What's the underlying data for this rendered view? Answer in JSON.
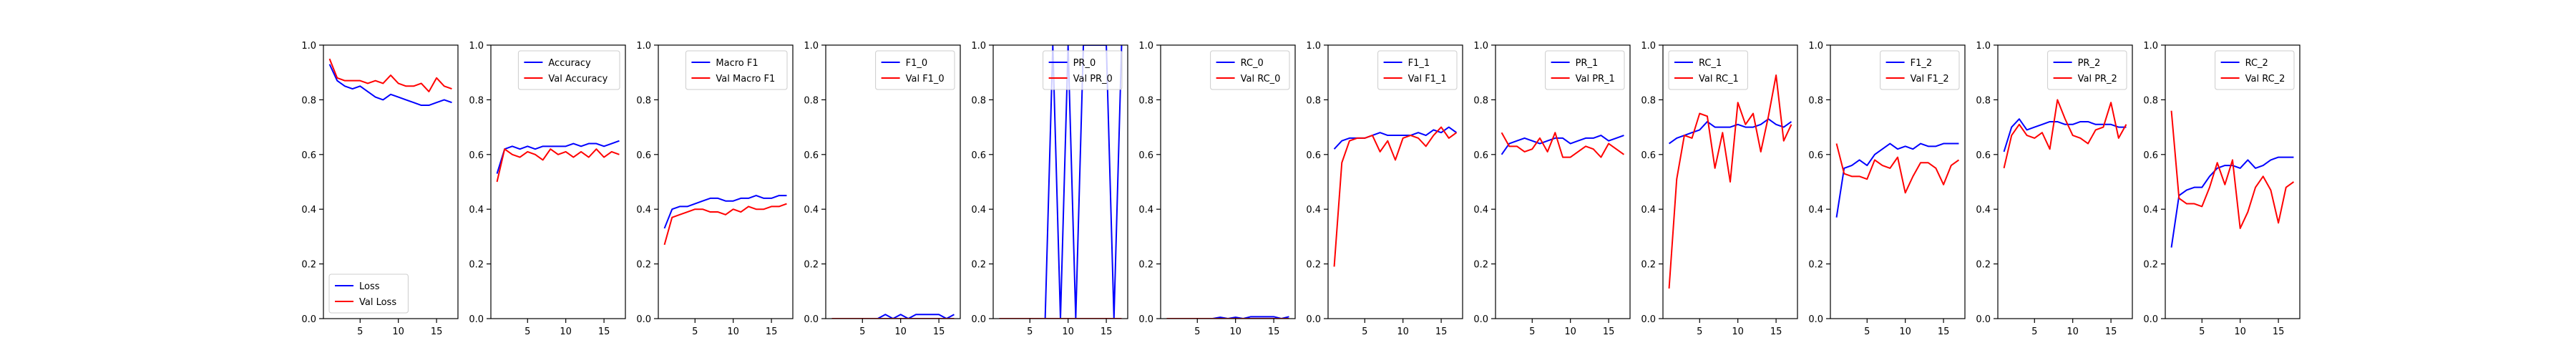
{
  "chart_data": [
    {
      "type": "line",
      "x": [
        1,
        2,
        3,
        4,
        5,
        6,
        7,
        8,
        9,
        10,
        11,
        12,
        13,
        14,
        15,
        16,
        17
      ],
      "ylim": [
        0,
        1.0
      ],
      "xticks": [
        "5",
        "10",
        "15"
      ],
      "yticks": [
        "0.0",
        "0.2",
        "0.4",
        "0.6",
        "0.8",
        "1.0"
      ],
      "legend_loc": "lower-left",
      "series": [
        {
          "name": "Loss",
          "color": "#0000ff",
          "values": [
            0.93,
            0.87,
            0.85,
            0.84,
            0.85,
            0.83,
            0.81,
            0.8,
            0.82,
            0.81,
            0.8,
            0.79,
            0.78,
            0.78,
            0.79,
            0.8,
            0.79
          ]
        },
        {
          "name": "Val Loss",
          "color": "#ff0000",
          "values": [
            0.95,
            0.88,
            0.87,
            0.87,
            0.87,
            0.86,
            0.87,
            0.86,
            0.89,
            0.86,
            0.85,
            0.85,
            0.86,
            0.83,
            0.88,
            0.85,
            0.84
          ]
        }
      ]
    },
    {
      "type": "line",
      "x": [
        1,
        2,
        3,
        4,
        5,
        6,
        7,
        8,
        9,
        10,
        11,
        12,
        13,
        14,
        15,
        16,
        17
      ],
      "ylim": [
        0,
        1.0
      ],
      "xticks": [
        "5",
        "10",
        "15"
      ],
      "yticks": [
        "0.0",
        "0.2",
        "0.4",
        "0.6",
        "0.8",
        "1.0"
      ],
      "legend_loc": "upper-right",
      "series": [
        {
          "name": "Accuracy",
          "color": "#0000ff",
          "values": [
            0.53,
            0.62,
            0.63,
            0.62,
            0.63,
            0.62,
            0.63,
            0.63,
            0.63,
            0.63,
            0.64,
            0.63,
            0.64,
            0.64,
            0.63,
            0.64,
            0.65
          ]
        },
        {
          "name": "Val Accuracy",
          "color": "#ff0000",
          "values": [
            0.5,
            0.62,
            0.6,
            0.59,
            0.61,
            0.6,
            0.58,
            0.62,
            0.6,
            0.61,
            0.59,
            0.61,
            0.59,
            0.62,
            0.59,
            0.61,
            0.6
          ]
        }
      ]
    },
    {
      "type": "line",
      "x": [
        1,
        2,
        3,
        4,
        5,
        6,
        7,
        8,
        9,
        10,
        11,
        12,
        13,
        14,
        15,
        16,
        17
      ],
      "ylim": [
        0,
        1.0
      ],
      "xticks": [
        "5",
        "10",
        "15"
      ],
      "yticks": [
        "0.0",
        "0.2",
        "0.4",
        "0.6",
        "0.8",
        "1.0"
      ],
      "legend_loc": "upper-right",
      "series": [
        {
          "name": "Macro F1",
          "color": "#0000ff",
          "values": [
            0.33,
            0.4,
            0.41,
            0.41,
            0.42,
            0.43,
            0.44,
            0.44,
            0.43,
            0.43,
            0.44,
            0.44,
            0.45,
            0.44,
            0.44,
            0.45,
            0.45
          ]
        },
        {
          "name": "Val Macro F1",
          "color": "#ff0000",
          "values": [
            0.27,
            0.37,
            0.38,
            0.39,
            0.4,
            0.4,
            0.39,
            0.39,
            0.38,
            0.4,
            0.39,
            0.41,
            0.4,
            0.4,
            0.41,
            0.41,
            0.42
          ]
        }
      ]
    },
    {
      "type": "line",
      "x": [
        1,
        2,
        3,
        4,
        5,
        6,
        7,
        8,
        9,
        10,
        11,
        12,
        13,
        14,
        15,
        16,
        17
      ],
      "ylim": [
        0,
        1.0
      ],
      "xticks": [
        "5",
        "10",
        "15"
      ],
      "yticks": [
        "0.0",
        "0.2",
        "0.4",
        "0.6",
        "0.8",
        "1.0"
      ],
      "legend_loc": "upper-right",
      "series": [
        {
          "name": "F1_0",
          "color": "#0000ff",
          "values": [
            0,
            0,
            0,
            0,
            0,
            0,
            0,
            0.015,
            0,
            0.015,
            0,
            0.015,
            0.015,
            0.015,
            0.015,
            0,
            0.015
          ]
        },
        {
          "name": "Val F1_0",
          "color": "#ff0000",
          "values": [
            0,
            0,
            0,
            0,
            0,
            0,
            0,
            0,
            0,
            0,
            0,
            0,
            0,
            0,
            0,
            0,
            0
          ]
        }
      ]
    },
    {
      "type": "line",
      "x": [
        1,
        2,
        3,
        4,
        5,
        6,
        7,
        8,
        9,
        10,
        11,
        12,
        13,
        14,
        15,
        16,
        17
      ],
      "ylim": [
        0,
        1.0
      ],
      "xticks": [
        "5",
        "10",
        "15"
      ],
      "yticks": [
        "0.0",
        "0.2",
        "0.4",
        "0.6",
        "0.8",
        "1.0"
      ],
      "legend_loc": "upper-right",
      "series": [
        {
          "name": "PR_0",
          "color": "#0000ff",
          "values": [
            0,
            0,
            0,
            0,
            0,
            0,
            0,
            1,
            0,
            1,
            0,
            1,
            1,
            1,
            1,
            0,
            1
          ]
        },
        {
          "name": "Val PR_0",
          "color": "#ff0000",
          "values": [
            0,
            0,
            0,
            0,
            0,
            0,
            0,
            0,
            0,
            0,
            0,
            0,
            0,
            0,
            0,
            0,
            0
          ]
        }
      ]
    },
    {
      "type": "line",
      "x": [
        1,
        2,
        3,
        4,
        5,
        6,
        7,
        8,
        9,
        10,
        11,
        12,
        13,
        14,
        15,
        16,
        17
      ],
      "ylim": [
        0,
        1.0
      ],
      "xticks": [
        "5",
        "10",
        "15"
      ],
      "yticks": [
        "0.0",
        "0.2",
        "0.4",
        "0.6",
        "0.8",
        "1.0"
      ],
      "legend_loc": "upper-right",
      "series": [
        {
          "name": "RC_0",
          "color": "#0000ff",
          "values": [
            0,
            0,
            0,
            0,
            0,
            0,
            0,
            0.005,
            0,
            0.005,
            0,
            0.007,
            0.007,
            0.007,
            0.007,
            0,
            0.007
          ]
        },
        {
          "name": "Val RC_0",
          "color": "#ff0000",
          "values": [
            0,
            0,
            0,
            0,
            0,
            0,
            0,
            0,
            0,
            0,
            0,
            0,
            0,
            0,
            0,
            0,
            0
          ]
        }
      ]
    },
    {
      "type": "line",
      "x": [
        1,
        2,
        3,
        4,
        5,
        6,
        7,
        8,
        9,
        10,
        11,
        12,
        13,
        14,
        15,
        16,
        17
      ],
      "ylim": [
        0,
        1.0
      ],
      "xticks": [
        "5",
        "10",
        "15"
      ],
      "yticks": [
        "0.0",
        "0.2",
        "0.4",
        "0.6",
        "0.8",
        "1.0"
      ],
      "legend_loc": "upper-right",
      "series": [
        {
          "name": "F1_1",
          "color": "#0000ff",
          "values": [
            0.62,
            0.65,
            0.66,
            0.66,
            0.66,
            0.67,
            0.68,
            0.67,
            0.67,
            0.67,
            0.67,
            0.68,
            0.67,
            0.69,
            0.68,
            0.7,
            0.68
          ]
        },
        {
          "name": "Val F1_1",
          "color": "#ff0000",
          "values": [
            0.19,
            0.57,
            0.65,
            0.66,
            0.66,
            0.67,
            0.61,
            0.65,
            0.58,
            0.66,
            0.67,
            0.66,
            0.63,
            0.67,
            0.7,
            0.66,
            0.68
          ]
        }
      ]
    },
    {
      "type": "line",
      "x": [
        1,
        2,
        3,
        4,
        5,
        6,
        7,
        8,
        9,
        10,
        11,
        12,
        13,
        14,
        15,
        16,
        17
      ],
      "ylim": [
        0,
        1.0
      ],
      "xticks": [
        "5",
        "10",
        "15"
      ],
      "yticks": [
        "0.0",
        "0.2",
        "0.4",
        "0.6",
        "0.8",
        "1.0"
      ],
      "legend_loc": "upper-right",
      "series": [
        {
          "name": "PR_1",
          "color": "#0000ff",
          "values": [
            0.6,
            0.64,
            0.65,
            0.66,
            0.65,
            0.64,
            0.65,
            0.66,
            0.66,
            0.64,
            0.65,
            0.66,
            0.66,
            0.67,
            0.65,
            0.66,
            0.67
          ]
        },
        {
          "name": "Val PR_1",
          "color": "#ff0000",
          "values": [
            0.68,
            0.63,
            0.63,
            0.61,
            0.62,
            0.66,
            0.61,
            0.68,
            0.59,
            0.59,
            0.61,
            0.63,
            0.62,
            0.59,
            0.64,
            0.62,
            0.6
          ]
        }
      ]
    },
    {
      "type": "line",
      "x": [
        1,
        2,
        3,
        4,
        5,
        6,
        7,
        8,
        9,
        10,
        11,
        12,
        13,
        14,
        15,
        16,
        17
      ],
      "ylim": [
        0,
        1.0
      ],
      "xticks": [
        "5",
        "10",
        "15"
      ],
      "yticks": [
        "0.0",
        "0.2",
        "0.4",
        "0.6",
        "0.8",
        "1.0"
      ],
      "legend_loc": "upper-left",
      "series": [
        {
          "name": "RC_1",
          "color": "#0000ff",
          "values": [
            0.64,
            0.66,
            0.67,
            0.68,
            0.69,
            0.72,
            0.7,
            0.7,
            0.7,
            0.71,
            0.7,
            0.7,
            0.71,
            0.73,
            0.71,
            0.7,
            0.72
          ]
        },
        {
          "name": "Val RC_1",
          "color": "#ff0000",
          "values": [
            0.11,
            0.51,
            0.67,
            0.66,
            0.75,
            0.74,
            0.55,
            0.68,
            0.5,
            0.79,
            0.71,
            0.75,
            0.61,
            0.74,
            0.89,
            0.65,
            0.71
          ]
        }
      ]
    },
    {
      "type": "line",
      "x": [
        1,
        2,
        3,
        4,
        5,
        6,
        7,
        8,
        9,
        10,
        11,
        12,
        13,
        14,
        15,
        16,
        17
      ],
      "ylim": [
        0,
        1.0
      ],
      "xticks": [
        "5",
        "10",
        "15"
      ],
      "yticks": [
        "0.0",
        "0.2",
        "0.4",
        "0.6",
        "0.8",
        "1.0"
      ],
      "legend_loc": "upper-right",
      "series": [
        {
          "name": "F1_2",
          "color": "#0000ff",
          "values": [
            0.37,
            0.55,
            0.56,
            0.58,
            0.56,
            0.6,
            0.62,
            0.64,
            0.62,
            0.63,
            0.62,
            0.64,
            0.63,
            0.63,
            0.64,
            0.64,
            0.64
          ]
        },
        {
          "name": "Val F1_2",
          "color": "#ff0000",
          "values": [
            0.64,
            0.53,
            0.52,
            0.52,
            0.51,
            0.58,
            0.56,
            0.55,
            0.59,
            0.46,
            0.52,
            0.57,
            0.57,
            0.55,
            0.49,
            0.56,
            0.58
          ]
        }
      ]
    },
    {
      "type": "line",
      "x": [
        1,
        2,
        3,
        4,
        5,
        6,
        7,
        8,
        9,
        10,
        11,
        12,
        13,
        14,
        15,
        16,
        17
      ],
      "ylim": [
        0,
        1.0
      ],
      "xticks": [
        "5",
        "10",
        "15"
      ],
      "yticks": [
        "0.0",
        "0.2",
        "0.4",
        "0.6",
        "0.8",
        "1.0"
      ],
      "legend_loc": "upper-right",
      "series": [
        {
          "name": "PR_2",
          "color": "#0000ff",
          "values": [
            0.61,
            0.7,
            0.73,
            0.69,
            0.7,
            0.71,
            0.72,
            0.72,
            0.71,
            0.71,
            0.72,
            0.72,
            0.71,
            0.71,
            0.71,
            0.7,
            0.7
          ]
        },
        {
          "name": "Val PR_2",
          "color": "#ff0000",
          "values": [
            0.55,
            0.67,
            0.71,
            0.67,
            0.66,
            0.68,
            0.62,
            0.8,
            0.73,
            0.67,
            0.66,
            0.64,
            0.69,
            0.7,
            0.79,
            0.66,
            0.71
          ]
        }
      ]
    },
    {
      "type": "line",
      "x": [
        1,
        2,
        3,
        4,
        5,
        6,
        7,
        8,
        9,
        10,
        11,
        12,
        13,
        14,
        15,
        16,
        17
      ],
      "ylim": [
        0,
        1.0
      ],
      "xticks": [
        "5",
        "10",
        "15"
      ],
      "yticks": [
        "0.0",
        "0.2",
        "0.4",
        "0.6",
        "0.8",
        "1.0"
      ],
      "legend_loc": "upper-right",
      "series": [
        {
          "name": "RC_2",
          "color": "#0000ff",
          "values": [
            0.26,
            0.45,
            0.47,
            0.48,
            0.48,
            0.52,
            0.55,
            0.56,
            0.56,
            0.55,
            0.58,
            0.55,
            0.56,
            0.58,
            0.59,
            0.59,
            0.59
          ]
        },
        {
          "name": "Val RC_2",
          "color": "#ff0000",
          "values": [
            0.76,
            0.44,
            0.42,
            0.42,
            0.41,
            0.48,
            0.57,
            0.49,
            0.58,
            0.33,
            0.39,
            0.48,
            0.52,
            0.47,
            0.35,
            0.48,
            0.5
          ]
        }
      ]
    }
  ]
}
